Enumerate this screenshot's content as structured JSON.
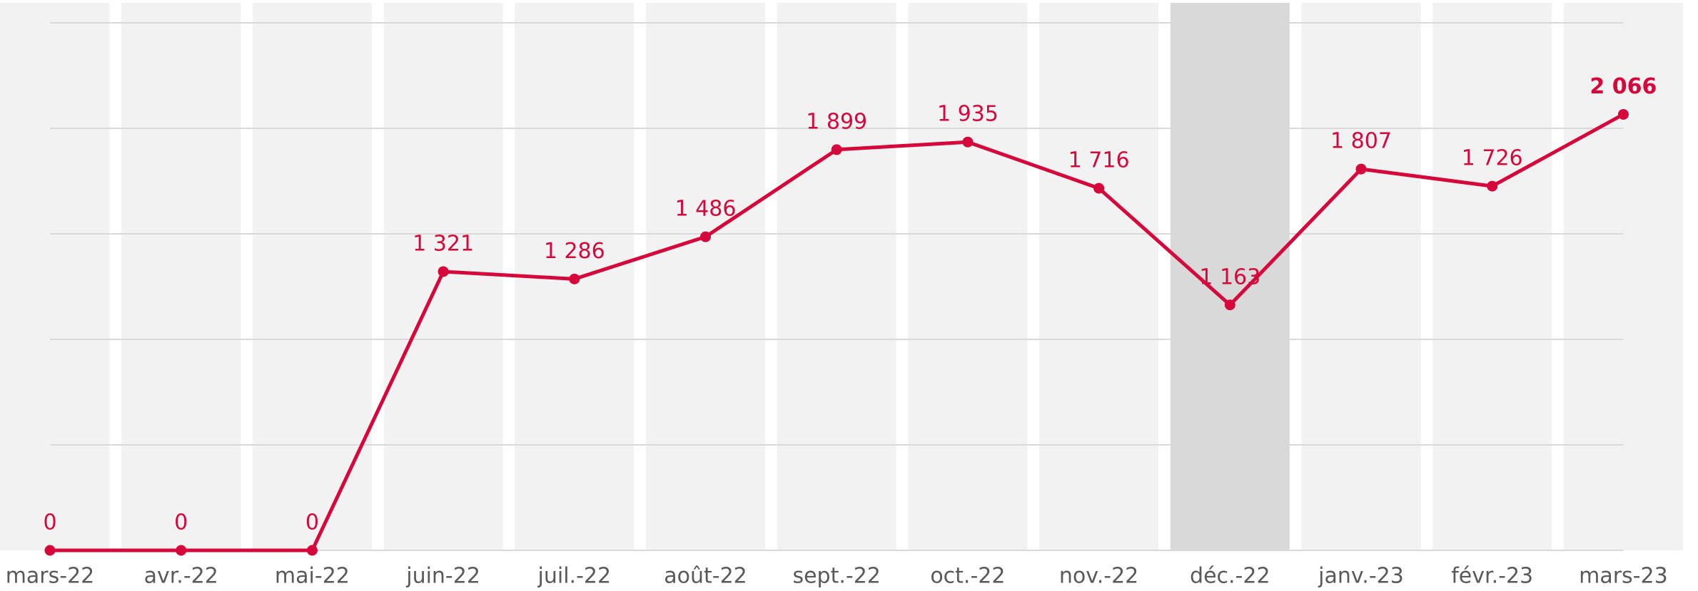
{
  "chart_data": {
    "type": "line",
    "categories": [
      "mars-22",
      "avr.-22",
      "mai-22",
      "juin-22",
      "juil.-22",
      "août-22",
      "sept.-22",
      "oct.-22",
      "nov.-22",
      "déc.-22",
      "janv.-23",
      "févr.-23",
      "mars-23"
    ],
    "series": [
      {
        "color": "#d6083b",
        "values": [
          0,
          0,
          0,
          1321,
          1286,
          1486,
          1899,
          1935,
          1716,
          1163,
          1807,
          1726,
          2066
        ],
        "value_labels": [
          "0",
          "0",
          "0",
          "1 321",
          "1 286",
          "1 486",
          "1 899",
          "1 935",
          "1 716",
          "1 163",
          "1 807",
          "1 726",
          "2 066"
        ]
      }
    ],
    "ylim": [
      0,
      2500
    ],
    "yticks": [
      0,
      500,
      1000,
      1500,
      2000,
      2500
    ],
    "grid": true,
    "highlight_category": "déc.-22"
  }
}
